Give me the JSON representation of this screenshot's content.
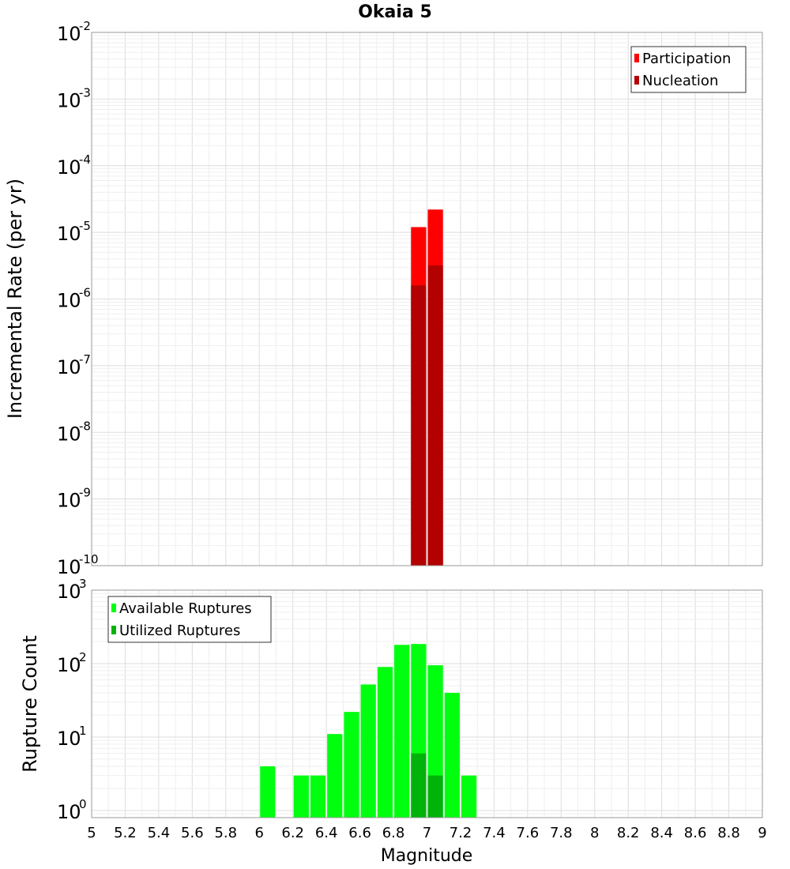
{
  "title": "Okaia 5",
  "chart_data": [
    {
      "type": "bar",
      "panel": "top",
      "ylabel": "Incremental Rate (per yr)",
      "yscale": "log",
      "ylim": [
        1e-10,
        0.01
      ],
      "xlim": [
        5.0,
        9.0
      ],
      "bin_width": 0.1,
      "legend": {
        "placement": "top-right"
      },
      "grid": true,
      "series": [
        {
          "name": "Participation",
          "color": "#ff0000",
          "x": [
            6.95,
            7.05
          ],
          "values": [
            1.2e-05,
            2.2e-05
          ]
        },
        {
          "name": "Nucleation",
          "color": "#b30000",
          "x": [
            6.95,
            7.05
          ],
          "values": [
            1.6e-06,
            3.2e-06
          ]
        }
      ]
    },
    {
      "type": "bar",
      "panel": "bottom",
      "ylabel": "Rupture Count",
      "xlabel": "Magnitude",
      "yscale": "log",
      "ylim": [
        0.8,
        1000
      ],
      "xlim": [
        5.0,
        9.0
      ],
      "bin_width": 0.1,
      "legend": {
        "placement": "top-left"
      },
      "grid": true,
      "x_ticks": [
        "5",
        "5.2",
        "5.4",
        "5.6",
        "5.8",
        "6",
        "6.2",
        "6.4",
        "6.6",
        "6.8",
        "7",
        "7.2",
        "7.4",
        "7.6",
        "7.8",
        "8",
        "8.2",
        "8.4",
        "8.6",
        "8.8",
        "9"
      ],
      "series": [
        {
          "name": "Available Ruptures",
          "color": "#00ff0f",
          "x": [
            6.05,
            6.25,
            6.35,
            6.45,
            6.55,
            6.65,
            6.75,
            6.85,
            6.95,
            7.05,
            7.15,
            7.25
          ],
          "values": [
            4,
            3,
            3,
            11,
            22,
            52,
            90,
            180,
            185,
            95,
            40,
            3
          ]
        },
        {
          "name": "Utilized Ruptures",
          "color": "#00b30b",
          "x": [
            6.95,
            7.05
          ],
          "values": [
            6,
            3
          ]
        }
      ]
    }
  ]
}
